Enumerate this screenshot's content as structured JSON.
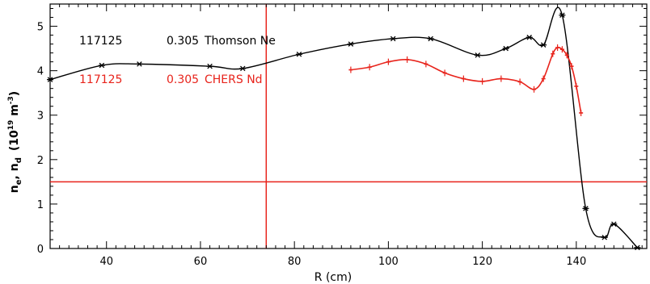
{
  "chart_data": {
    "type": "line",
    "xlabel": "R (cm)",
    "ylabel_main": "n",
    "ylabel_sub_e": "e",
    "ylabel_sep": ", ",
    "ylabel_main2": "n",
    "ylabel_sub_d": "d",
    "ylabel_units": "(10",
    "ylabel_exp1": "19",
    "ylabel_units_mid": " m",
    "ylabel_exp2": "-3",
    "ylabel_units_end": ")",
    "xlim": [
      28,
      155
    ],
    "ylim": [
      0,
      5.5
    ],
    "x_ticks": [
      40,
      60,
      80,
      100,
      120,
      140
    ],
    "y_ticks": [
      0,
      1,
      2,
      3,
      4,
      5
    ],
    "x_tick_labels": [
      "40",
      "60",
      "80",
      "100",
      "120",
      "140"
    ],
    "y_tick_labels": [
      "0",
      "1",
      "2",
      "3",
      "4",
      "5"
    ],
    "colors": {
      "thomson": "#000000",
      "chers": "#e8231b",
      "ref_lines": "#e8231b",
      "axes": "#000000"
    },
    "reference_lines": {
      "vertical_x": 74,
      "horizontal_y": 1.5
    },
    "legend": [
      {
        "shot": "117125",
        "time": "0.305",
        "label": "Thomson Ne",
        "color": "#000000"
      },
      {
        "shot": "117125",
        "time": "0.305",
        "label": "CHERS Nd",
        "color": "#e8231b"
      }
    ],
    "series": [
      {
        "name": "Thomson Ne",
        "color": "#000000",
        "x": [
          28,
          39,
          47,
          62,
          69,
          81,
          92,
          101,
          109,
          119,
          125,
          130,
          133,
          137,
          142,
          146,
          148,
          153
        ],
        "y": [
          3.8,
          4.12,
          4.15,
          4.1,
          4.05,
          4.37,
          4.6,
          4.72,
          4.72,
          4.35,
          4.5,
          4.75,
          4.58,
          5.25,
          0.9,
          0.25,
          0.55,
          0.02
        ]
      },
      {
        "name": "CHERS Nd",
        "color": "#e8231b",
        "x": [
          92,
          96,
          100,
          104,
          108,
          112,
          116,
          120,
          124,
          128,
          131,
          133,
          135,
          136,
          137,
          138,
          139,
          140,
          141
        ],
        "y": [
          4.02,
          4.08,
          4.2,
          4.25,
          4.15,
          3.95,
          3.82,
          3.76,
          3.82,
          3.75,
          3.58,
          3.82,
          4.38,
          4.52,
          4.48,
          4.35,
          4.1,
          3.65,
          3.05
        ]
      }
    ]
  }
}
